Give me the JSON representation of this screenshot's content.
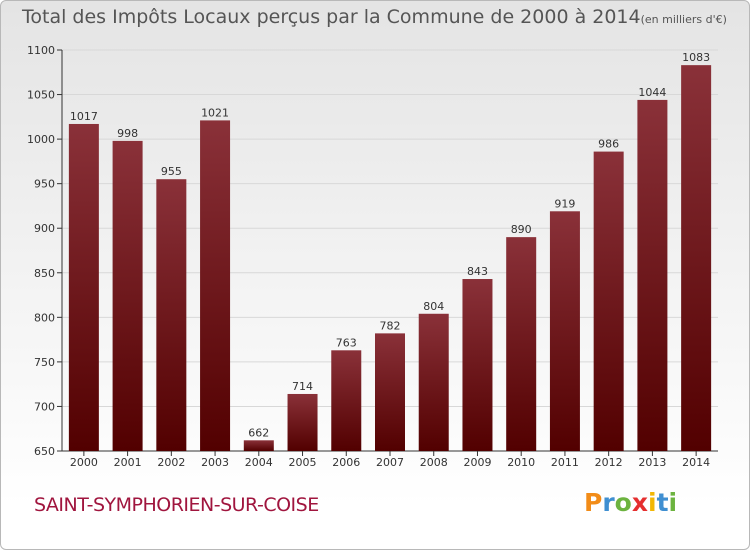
{
  "title": "Total des Impôts Locaux perçus par la Commune de 2000 à 2014",
  "unit_note": "(en milliers d'€)",
  "commune": "SAINT-SYMPHORIEN-SUR-COISE",
  "logo": {
    "text": "Proxiti",
    "letter_colors": [
      "#f28c18",
      "#3f8fd1",
      "#6cb33f",
      "#e52f2f",
      "#f2b705",
      "#3f8fd1",
      "#6cb33f"
    ]
  },
  "colors": {
    "bar_top": "#8a3139",
    "bar_bottom": "#520000",
    "axis": "#333333",
    "grid": "#d8d8d8"
  },
  "chart_data": {
    "type": "bar",
    "categories": [
      "2000",
      "2001",
      "2002",
      "2003",
      "2004",
      "2005",
      "2006",
      "2007",
      "2008",
      "2009",
      "2010",
      "2011",
      "2012",
      "2013",
      "2014"
    ],
    "values": [
      1017,
      998,
      955,
      1021,
      662,
      714,
      763,
      782,
      804,
      843,
      890,
      919,
      986,
      1044,
      1083
    ],
    "ylim": [
      650,
      1100
    ],
    "yticks": [
      650,
      700,
      750,
      800,
      850,
      900,
      950,
      1000,
      1050,
      1100
    ],
    "grid": true,
    "data_labels": true
  }
}
